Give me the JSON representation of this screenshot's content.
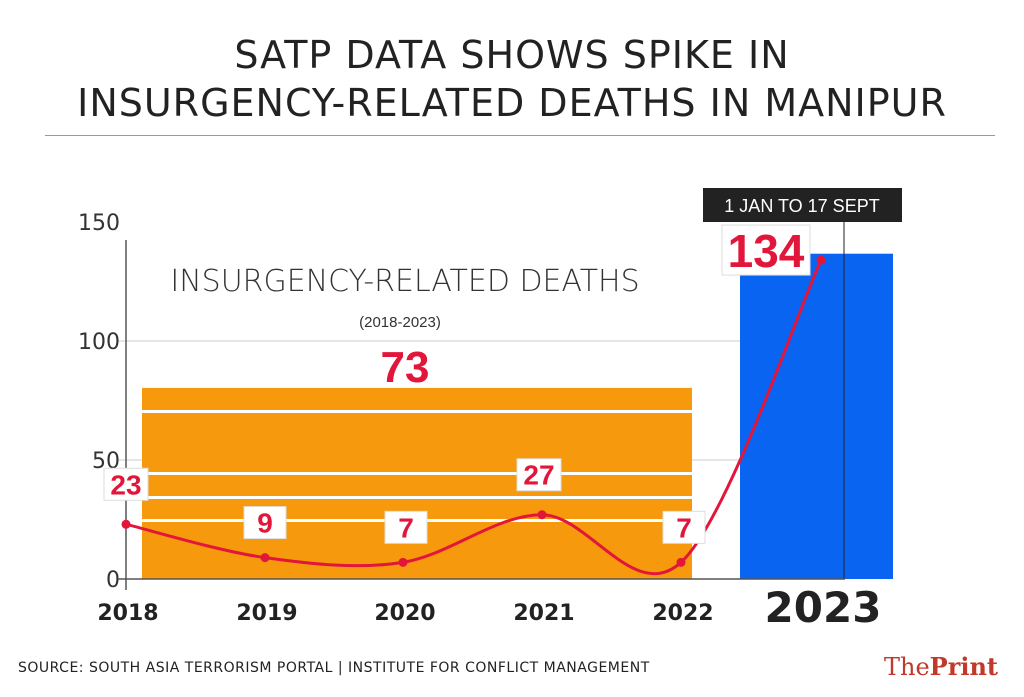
{
  "title_lines": [
    "SATP DATA SHOWS SPIKE IN",
    "INSURGENCY-RELATED DEATHS IN MANIPUR"
  ],
  "source": "SOURCE: SOUTH ASIA TERRORISM PORTAL | INSTITUTE FOR CONFLICT MANAGEMENT",
  "logo": {
    "the": "The",
    "print": "Print"
  },
  "chart_data": {
    "type": "line",
    "title": "INSURGENCY-RELATED DEATHS",
    "subtitle": "(2018-2023)",
    "categories": [
      "2018",
      "2019",
      "2020",
      "2021",
      "2022",
      "2023"
    ],
    "values": [
      23,
      9,
      7,
      27,
      7,
      134
    ],
    "ylim": [
      0,
      150
    ],
    "yticks": [
      0,
      50,
      100,
      150
    ],
    "grid": true,
    "annotations": {
      "period_2018_2022_total": "73",
      "period_2023_note": "1 JAN TO 17 SEPT",
      "period_2023_value": "134"
    },
    "background_bands": [
      {
        "years": "2018-2022",
        "value": 73,
        "color": "#f7990c"
      },
      {
        "years": "2023",
        "value": 134,
        "color": "#0a64f2"
      }
    ],
    "line_color": "#e2163a"
  }
}
